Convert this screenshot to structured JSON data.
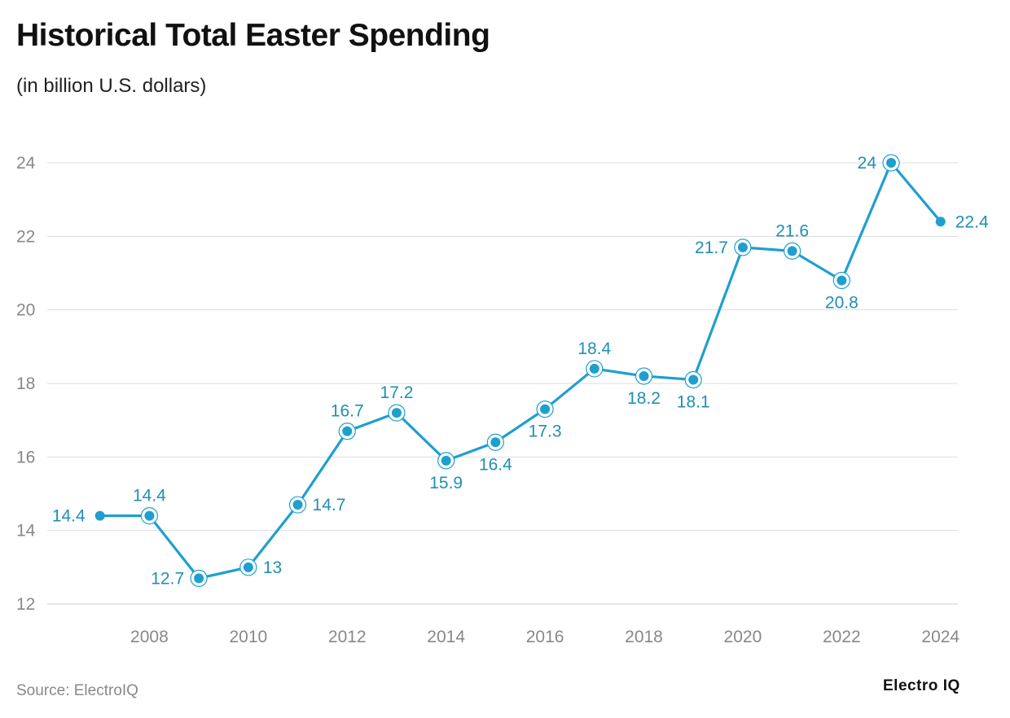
{
  "title": "Historical Total Easter Spending",
  "subtitle": "(in billion U.S. dollars)",
  "source": "Source: ElectroIQ",
  "brand": "Electro IQ",
  "colors": {
    "line": "#1f9fd0",
    "label": "#1f8fb5",
    "grid": "#dddddd",
    "tick": "#888888"
  },
  "chart_data": {
    "type": "line",
    "title": "Historical Total Easter Spending",
    "ylabel": "in billion U.S. dollars",
    "xlabel": "",
    "x": [
      2007,
      2008,
      2009,
      2010,
      2011,
      2012,
      2013,
      2014,
      2015,
      2016,
      2017,
      2018,
      2019,
      2020,
      2021,
      2022,
      2023,
      2024
    ],
    "series": [
      {
        "name": "Total Easter Spending",
        "values": [
          14.4,
          14.4,
          12.7,
          13,
          14.7,
          16.7,
          17.2,
          15.9,
          16.4,
          17.3,
          18.4,
          18.2,
          18.1,
          21.7,
          21.6,
          20.8,
          24,
          22.4
        ]
      }
    ],
    "data_labels": [
      "14.4",
      "14.4",
      "12.7",
      "13",
      "14.7",
      "16.7",
      "17.2",
      "15.9",
      "16.4",
      "17.3",
      "18.4",
      "18.2",
      "18.1",
      "21.7",
      "21.6",
      "20.8",
      "24",
      "22.4"
    ],
    "label_positions": [
      "left",
      "above",
      "left",
      "right",
      "right",
      "above",
      "above",
      "below",
      "below",
      "below",
      "above",
      "below",
      "below",
      "left",
      "above",
      "below",
      "left",
      "right"
    ],
    "xticks": [
      "2008",
      "2010",
      "2012",
      "2014",
      "2016",
      "2018",
      "2020",
      "2022",
      "2024"
    ],
    "yticks": [
      "12",
      "14",
      "16",
      "18",
      "20",
      "22",
      "24"
    ],
    "ylim": [
      12,
      24
    ],
    "xlim": [
      2006,
      2024.35
    ],
    "grid": true,
    "legend": "none"
  }
}
